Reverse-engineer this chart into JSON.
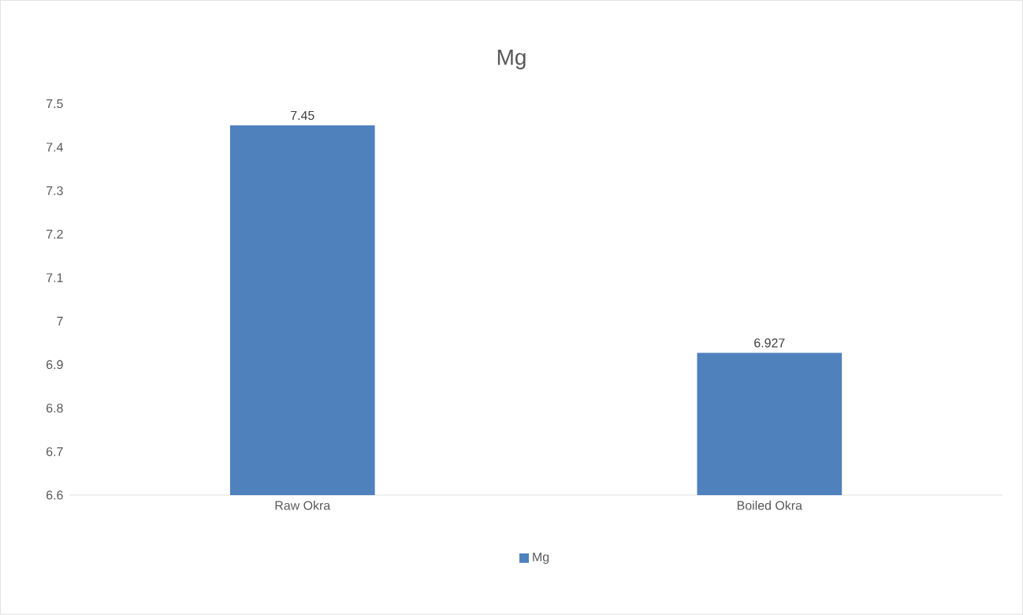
{
  "chart_data": {
    "type": "bar",
    "title": "Mg",
    "categories": [
      "Raw Okra",
      "Boiled Okra"
    ],
    "series": [
      {
        "name": "Mg",
        "color": "#4f81bd",
        "values": [
          7.45,
          6.927
        ]
      }
    ],
    "ylim": [
      6.6,
      7.5
    ],
    "yticks": [
      6.6,
      6.7,
      6.8,
      6.9,
      7,
      7.1,
      7.2,
      7.3,
      7.4,
      7.5
    ],
    "data_labels": true,
    "legend": "bottom"
  }
}
